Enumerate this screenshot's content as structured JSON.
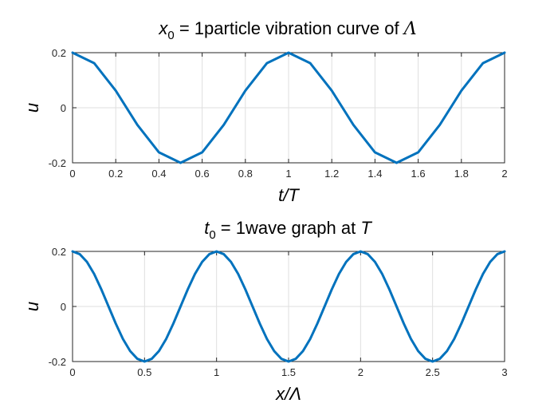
{
  "colors": {
    "series": "#0072BD",
    "axis": "#262626",
    "grid": "#DFDFDF"
  },
  "chart_data": [
    {
      "type": "line",
      "title": {
        "var": "x",
        "sub": "0",
        "rest": " = 1particle vibration curve of ",
        "sym": "Λ"
      },
      "xlabel": "t/T",
      "ylabel": "u",
      "xlim": [
        0,
        2
      ],
      "ylim": [
        -0.2,
        0.2
      ],
      "xticks": [
        0,
        0.2,
        0.4,
        0.6,
        0.8,
        1,
        1.2,
        1.4,
        1.6,
        1.8,
        2
      ],
      "xtick_labels": [
        "0",
        "0.2",
        "0.4",
        "0.6",
        "0.8",
        "1",
        "1.2",
        "1.4",
        "1.6",
        "1.8",
        "2"
      ],
      "yticks": [
        -0.2,
        0,
        0.2
      ],
      "ytick_labels": [
        "-0.2",
        "0",
        "0.2"
      ],
      "grid": true,
      "series": [
        {
          "x": [
            0,
            0.1,
            0.2,
            0.3,
            0.4,
            0.5,
            0.6,
            0.7,
            0.8,
            0.9,
            1.0,
            1.1,
            1.2,
            1.3,
            1.4,
            1.5,
            1.6,
            1.7,
            1.8,
            1.9,
            2.0
          ],
          "y": [
            0.2,
            0.162,
            0.062,
            -0.062,
            -0.162,
            -0.2,
            -0.162,
            -0.062,
            0.062,
            0.162,
            0.2,
            0.162,
            0.062,
            -0.062,
            -0.162,
            -0.2,
            -0.162,
            -0.062,
            0.062,
            0.162,
            0.2
          ]
        }
      ]
    },
    {
      "type": "line",
      "title": {
        "var": "t",
        "sub": "0",
        "rest": " = 1wave graph at ",
        "sym": "T"
      },
      "xlabel": "x/Λ",
      "ylabel": "u",
      "xlim": [
        0,
        3
      ],
      "ylim": [
        -0.2,
        0.2
      ],
      "xticks": [
        0,
        0.5,
        1,
        1.5,
        2,
        2.5,
        3
      ],
      "xtick_labels": [
        "0",
        "0.5",
        "1",
        "1.5",
        "2",
        "2.5",
        "3"
      ],
      "yticks": [
        -0.2,
        0,
        0.2
      ],
      "ytick_labels": [
        "-0.2",
        "0",
        "0.2"
      ],
      "grid": true,
      "series": [
        {
          "x": [
            0,
            0.05,
            0.1,
            0.15,
            0.2,
            0.25,
            0.3,
            0.35,
            0.4,
            0.45,
            0.5,
            0.55,
            0.6,
            0.65,
            0.7,
            0.75,
            0.8,
            0.85,
            0.9,
            0.95,
            1.0,
            1.05,
            1.1,
            1.15,
            1.2,
            1.25,
            1.3,
            1.35,
            1.4,
            1.45,
            1.5,
            1.55,
            1.6,
            1.65,
            1.7,
            1.75,
            1.8,
            1.85,
            1.9,
            1.95,
            2.0,
            2.05,
            2.1,
            2.15,
            2.2,
            2.25,
            2.3,
            2.35,
            2.4,
            2.45,
            2.5,
            2.55,
            2.6,
            2.65,
            2.7,
            2.75,
            2.8,
            2.85,
            2.9,
            2.95,
            3.0
          ],
          "y": [
            0.2,
            0.19,
            0.162,
            0.118,
            0.062,
            0,
            -0.062,
            -0.118,
            -0.162,
            -0.19,
            -0.2,
            -0.19,
            -0.162,
            -0.118,
            -0.062,
            0,
            0.062,
            0.118,
            0.162,
            0.19,
            0.2,
            0.19,
            0.162,
            0.118,
            0.062,
            0,
            -0.062,
            -0.118,
            -0.162,
            -0.19,
            -0.2,
            -0.19,
            -0.162,
            -0.118,
            -0.062,
            0,
            0.062,
            0.118,
            0.162,
            0.19,
            0.2,
            0.19,
            0.162,
            0.118,
            0.062,
            0,
            -0.062,
            -0.118,
            -0.162,
            -0.19,
            -0.2,
            -0.19,
            -0.162,
            -0.118,
            -0.062,
            0,
            0.062,
            0.118,
            0.162,
            0.19,
            0.2
          ]
        }
      ]
    }
  ]
}
